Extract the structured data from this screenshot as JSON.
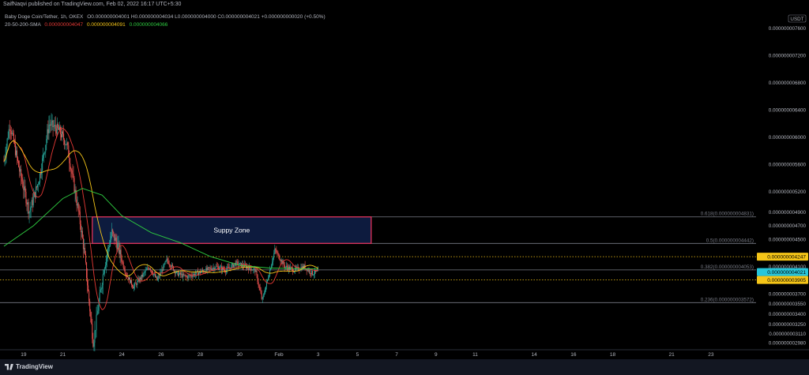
{
  "header": {
    "attribution": "SaifNaqvi published on TradingView.com, Feb 02, 2022 16:17 UTC+5:30"
  },
  "legend": {
    "symbol": "Baby Doge Coin/Tether, 1h, OKEX",
    "ohlc": "O0.000000004001  H0.000000004034  L0.000000004000  C0.000000004021  +0.000000000020 (+0.50%)",
    "ma_label": "20-50-200-SMA",
    "ma20": "0.000000004047",
    "ma50": "0.000000004091",
    "ma200": "0.000000004066"
  },
  "axis": {
    "currency": "USDT",
    "price_labels": [
      {
        "label": "0.000000007600",
        "value": 7600
      },
      {
        "label": "0.000000007200",
        "value": 7200
      },
      {
        "label": "0.000000006800",
        "value": 6800
      },
      {
        "label": "0.000000006400",
        "value": 6400
      },
      {
        "label": "0.000000006000",
        "value": 6000
      },
      {
        "label": "0.000000005600",
        "value": 5600
      },
      {
        "label": "0.000000005200",
        "value": 5200
      },
      {
        "label": "0.000000004900",
        "value": 4900
      },
      {
        "label": "0.000000004700",
        "value": 4700
      },
      {
        "label": "0.000000004500",
        "value": 4500
      },
      {
        "label": "0.000000004100",
        "value": 4100
      },
      {
        "label": "0.000000003700",
        "value": 3700
      },
      {
        "label": "0.000000003550",
        "value": 3550
      },
      {
        "label": "0.000000003400",
        "value": 3400
      },
      {
        "label": "0.000000003250",
        "value": 3250
      },
      {
        "label": "0.000000003110",
        "value": 3110
      },
      {
        "label": "0.000000002980",
        "value": 2980
      }
    ],
    "price_badges": [
      {
        "label": "0.000000004247",
        "value": 4247,
        "color": "#f5c518",
        "text_color": "#000000"
      },
      {
        "label": "0.000000004021",
        "value": 4021,
        "color": "#26c6da",
        "text_color": "#000000"
      },
      {
        "label": "0.000000003905",
        "value": 3905,
        "color": "#f5c518",
        "text_color": "#000000"
      }
    ],
    "time_labels": [
      {
        "label": "19",
        "day": 19
      },
      {
        "label": "21",
        "day": 21
      },
      {
        "label": "24",
        "day": 24
      },
      {
        "label": "26",
        "day": 26
      },
      {
        "label": "28",
        "day": 28
      },
      {
        "label": "30",
        "day": 30
      },
      {
        "label": "Feb",
        "day": 32
      },
      {
        "label": "3",
        "day": 34
      },
      {
        "label": "5",
        "day": 36
      },
      {
        "label": "7",
        "day": 38
      },
      {
        "label": "9",
        "day": 40
      },
      {
        "label": "11",
        "day": 42
      },
      {
        "label": "14",
        "day": 45
      },
      {
        "label": "16",
        "day": 47
      },
      {
        "label": "18",
        "day": 49
      },
      {
        "label": "21",
        "day": 52
      },
      {
        "label": "23",
        "day": 54
      }
    ]
  },
  "fib_levels": [
    {
      "label": "0.618(0.000000004831)",
      "value": 4831,
      "color": "#787b86"
    },
    {
      "label": "0.5(0.000000004442)",
      "value": 4442,
      "color": "#787b86"
    },
    {
      "label": "0.382(0.000000004053)",
      "value": 4053,
      "color": "#787b86"
    },
    {
      "label": "0.236(0.000000003572)",
      "value": 3572,
      "color": "#787b86"
    }
  ],
  "dotted_levels": [
    {
      "value": 4247,
      "color": "#f5c518"
    },
    {
      "value": 3905,
      "color": "#f5c518"
    }
  ],
  "supply_zone": {
    "label": "Suppy Zone",
    "from_day": 22.5,
    "to_day": 36.7,
    "top": 4831,
    "bottom": 4442,
    "fill": "#0d1b3e",
    "border": "#e0325a"
  },
  "colors": {
    "up": "#26a69a",
    "down": "#ef5350",
    "sma20": "#e53935",
    "sma50": "#f5c518",
    "sma200": "#2ecc40",
    "grid_text": "#b2b5be"
  },
  "chart_data": {
    "type": "candlestick",
    "title": "",
    "x_unit": "day of month (Jan 2022; 32 = Feb 1)",
    "y_unit": "price ×1e-12 USDT",
    "ylim": [
      2880,
      7750
    ],
    "xlim": [
      17.8,
      56.3
    ],
    "anchors": [
      {
        "day": 18.0,
        "price": 5650
      },
      {
        "day": 18.3,
        "price": 6200
      },
      {
        "day": 18.8,
        "price": 5500
      },
      {
        "day": 19.3,
        "price": 4900
      },
      {
        "day": 19.8,
        "price": 5400
      },
      {
        "day": 20.3,
        "price": 6200
      },
      {
        "day": 20.8,
        "price": 6100
      },
      {
        "day": 21.2,
        "price": 5900
      },
      {
        "day": 21.5,
        "price": 5400
      },
      {
        "day": 21.8,
        "price": 4900
      },
      {
        "day": 22.1,
        "price": 4300
      },
      {
        "day": 22.4,
        "price": 3400
      },
      {
        "day": 22.55,
        "price": 2980
      },
      {
        "day": 22.8,
        "price": 3500
      },
      {
        "day": 23.1,
        "price": 4100
      },
      {
        "day": 23.5,
        "price": 4600
      },
      {
        "day": 23.8,
        "price": 4400
      },
      {
        "day": 24.2,
        "price": 4000
      },
      {
        "day": 24.6,
        "price": 3800
      },
      {
        "day": 25.0,
        "price": 3950
      },
      {
        "day": 25.4,
        "price": 4100
      },
      {
        "day": 25.8,
        "price": 3900
      },
      {
        "day": 26.3,
        "price": 4200
      },
      {
        "day": 26.8,
        "price": 4000
      },
      {
        "day": 27.3,
        "price": 3950
      },
      {
        "day": 27.8,
        "price": 4000
      },
      {
        "day": 28.3,
        "price": 4050
      },
      {
        "day": 28.8,
        "price": 4100
      },
      {
        "day": 29.3,
        "price": 4050
      },
      {
        "day": 29.8,
        "price": 4150
      },
      {
        "day": 30.3,
        "price": 4100
      },
      {
        "day": 30.8,
        "price": 4050
      },
      {
        "day": 31.15,
        "price": 3600
      },
      {
        "day": 31.5,
        "price": 4000
      },
      {
        "day": 31.8,
        "price": 4350
      },
      {
        "day": 32.3,
        "price": 4100
      },
      {
        "day": 32.8,
        "price": 4050
      },
      {
        "day": 33.3,
        "price": 4100
      },
      {
        "day": 33.7,
        "price": 4001
      },
      {
        "day": 34.0,
        "price": 4021
      }
    ],
    "sma200_anchors": [
      {
        "day": 18.0,
        "price": 4400
      },
      {
        "day": 19.5,
        "price": 4700
      },
      {
        "day": 21.0,
        "price": 5100
      },
      {
        "day": 22.0,
        "price": 5250
      },
      {
        "day": 23.0,
        "price": 5150
      },
      {
        "day": 24.0,
        "price": 4850
      },
      {
        "day": 25.5,
        "price": 4600
      },
      {
        "day": 27.0,
        "price": 4450
      },
      {
        "day": 28.5,
        "price": 4250
      },
      {
        "day": 30.0,
        "price": 4120
      },
      {
        "day": 31.5,
        "price": 4080
      },
      {
        "day": 34.0,
        "price": 4066
      }
    ]
  }
}
